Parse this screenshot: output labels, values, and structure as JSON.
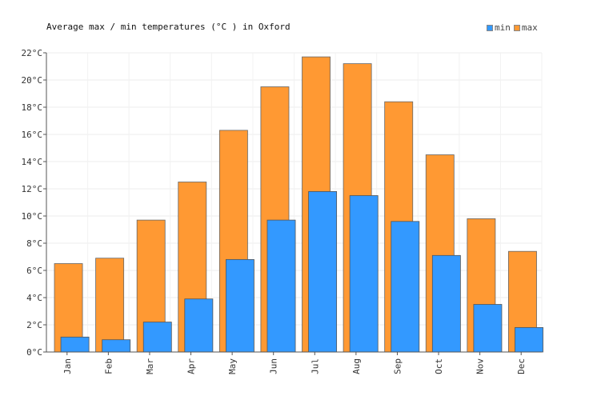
{
  "chart_data": {
    "type": "bar",
    "title": "Average max / min temperatures (°C ) in Oxford",
    "categories": [
      "Jan",
      "Feb",
      "Mar",
      "Apr",
      "May",
      "Jun",
      "Jul",
      "Aug",
      "Sep",
      "Oct",
      "Nov",
      "Dec"
    ],
    "series": [
      {
        "name": "max",
        "color": "#ff9933",
        "values": [
          6.5,
          6.9,
          9.7,
          12.5,
          16.3,
          19.5,
          21.7,
          21.2,
          18.4,
          14.5,
          9.8,
          7.4
        ]
      },
      {
        "name": "min",
        "color": "#3399ff",
        "values": [
          1.1,
          0.9,
          2.2,
          3.9,
          6.8,
          9.7,
          11.8,
          11.5,
          9.6,
          7.1,
          3.5,
          1.8
        ]
      }
    ],
    "ylim": [
      0,
      22
    ],
    "yticks": [
      0,
      2,
      4,
      6,
      8,
      10,
      12,
      14,
      16,
      18,
      20,
      22
    ],
    "y_tick_suffix": "°C",
    "grid": true,
    "legend_position": "top-right",
    "legend": [
      "min",
      "max"
    ]
  }
}
